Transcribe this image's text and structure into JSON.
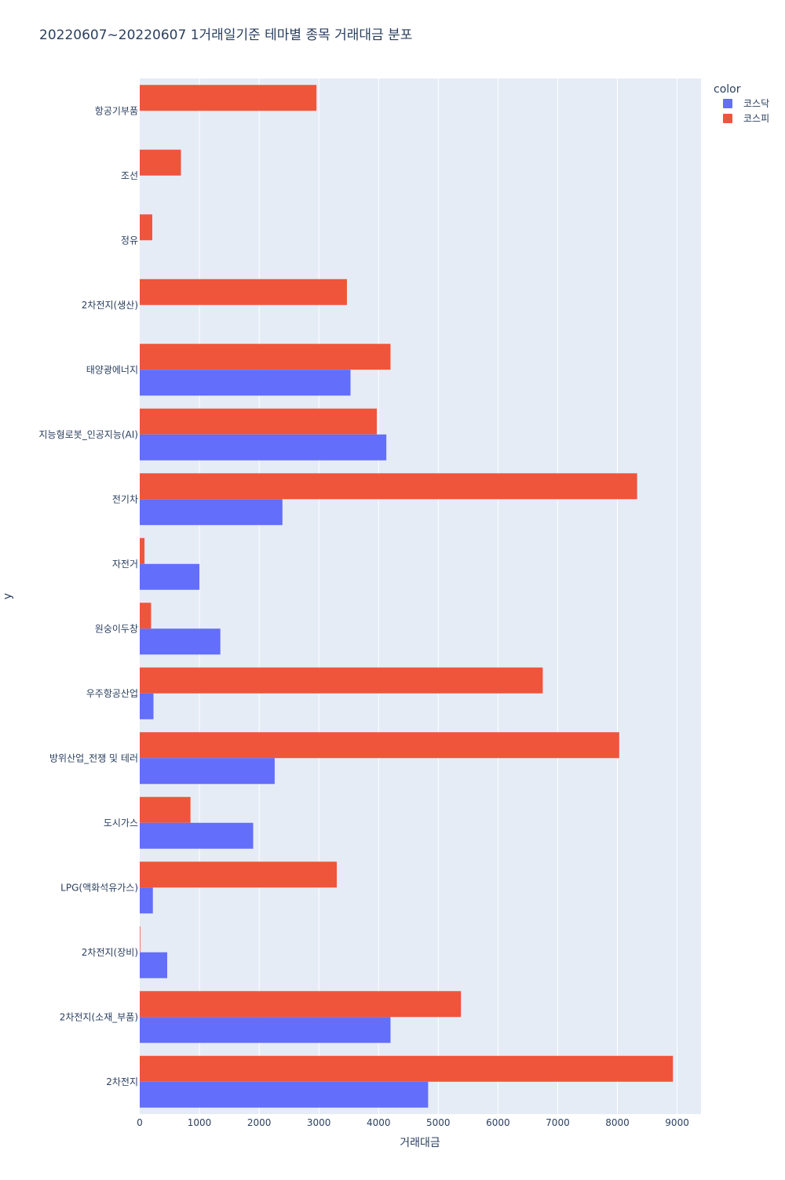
{
  "chart_data": {
    "type": "bar",
    "orientation": "horizontal",
    "barmode": "group",
    "title": "20220607~20220607 1거래일기준 테마별 종목 거래대금 분포",
    "xlabel": "거래대금",
    "ylabel": "y",
    "xlim": [
      0,
      9400
    ],
    "x_ticks": [
      "0",
      "1000",
      "2000",
      "3000",
      "4000",
      "5000",
      "6000",
      "7000",
      "8000",
      "9000"
    ],
    "grid": true,
    "legend": {
      "title": "color",
      "position": "top-right",
      "items": [
        {
          "label": "코스닥",
          "color": "#636efa"
        },
        {
          "label": "코스피",
          "color": "#ef553b"
        }
      ]
    },
    "categories": [
      "항공기부품",
      "조선",
      "정유",
      "2차전지(생산)",
      "태양광에너지",
      "지능형로봇_인공지능(AI)",
      "전기차",
      "자전거",
      "원숭이두창",
      "우주항공산업",
      "방위산업_전쟁 및 테러",
      "도시가스",
      "LPG(액화석유가스)",
      "2차전지(장비)",
      "2차전지(소재_부품)",
      "2차전지"
    ],
    "series": [
      {
        "name": "코스닥",
        "color": "#636efa",
        "values": [
          0,
          0,
          0,
          0,
          3530,
          4130,
          2390,
          1000,
          1350,
          230,
          2260,
          1900,
          220,
          460,
          4200,
          4830
        ]
      },
      {
        "name": "코스피",
        "color": "#ef553b",
        "values": [
          2960,
          690,
          210,
          3470,
          4200,
          3970,
          8330,
          80,
          190,
          6750,
          8030,
          850,
          3300,
          10,
          5380,
          8930
        ]
      }
    ]
  }
}
